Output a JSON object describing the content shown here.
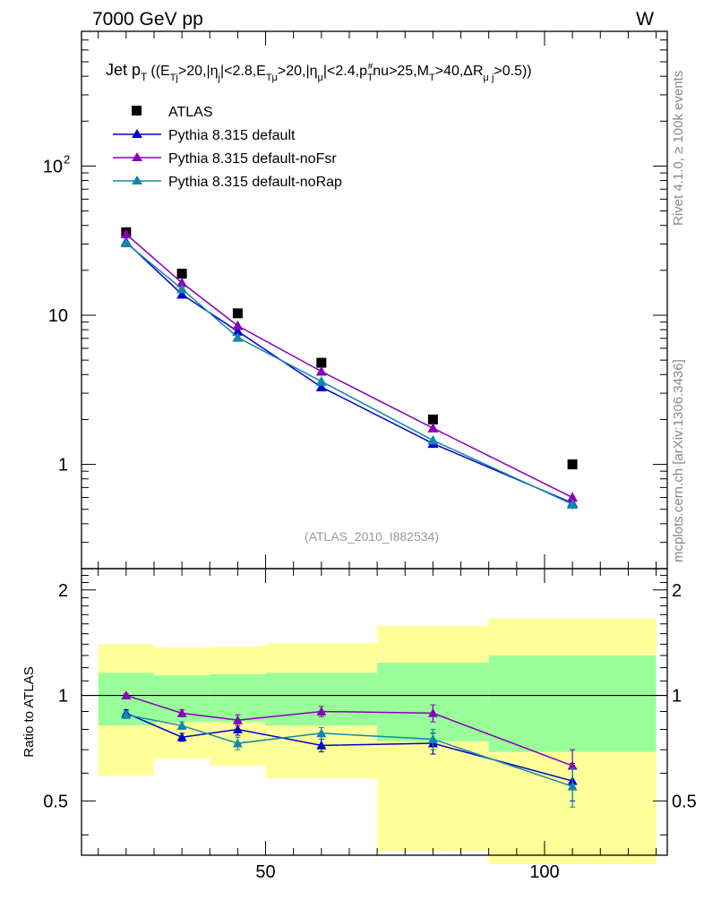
{
  "header": {
    "energy_label": "7000 GeV pp",
    "process_label": "W",
    "side_label_top": "Rivet 4.1.0, ≥ 100k events",
    "side_label_bottom": "mcplots.cern.ch [arXiv:1306.3436]",
    "analysis_label": "(ATLAS_2010_I882534)"
  },
  "chart_data": [
    {
      "type": "scatter",
      "panel": "main",
      "title": "Jet pT ((ETj>20,|ηj|<2.8,ETμ>20,|ημ|<2.4,pT#nu>25,MT>40,ΔRμj>0.5))",
      "title_parts": {
        "main": "Jet p",
        "main_sub": "T",
        "open": "((E",
        "s1": "Tj",
        "t1": ">20,|η",
        "s2": "j",
        "t2": "|<2.8,E",
        "s3": "Tμ",
        "t3": ">20,|η",
        "s4": "μ",
        "t4": "|<2.4,p",
        "s5": "T",
        "sup5": "#",
        "t5": "nu>25,M",
        "s6": "T",
        "t6": ">40,ΔR",
        "s7": "μ j",
        "t7": ">0.5))"
      },
      "xlabel": "",
      "ylabel": "",
      "xlim": [
        17,
        122
      ],
      "ylim": [
        0.2,
        800
      ],
      "yscale": "log",
      "x_ticks": [
        50,
        100
      ],
      "y_ticks": [
        {
          "value": 1,
          "label": "1"
        },
        {
          "value": 10,
          "label": "10"
        },
        {
          "value": 100,
          "label": "10",
          "exp": "2"
        }
      ],
      "legend_position": "top-left",
      "series": [
        {
          "name": "ATLAS",
          "color": "#000000",
          "marker": "square",
          "line": false,
          "x": [
            25,
            35,
            45,
            60,
            80,
            105
          ],
          "y": [
            36,
            19,
            10.3,
            4.8,
            2.0,
            1.0
          ],
          "err": [
            0,
            0,
            0,
            0,
            0,
            0
          ]
        },
        {
          "name": "Pythia 8.315 default",
          "color": "#0000cc",
          "marker": "triangle",
          "line": true,
          "x": [
            25,
            35,
            45,
            60,
            80,
            105
          ],
          "y": [
            31,
            13.8,
            7.8,
            3.3,
            1.38,
            0.55
          ],
          "err": [
            0.5,
            0.3,
            0.2,
            0.1,
            0.06,
            0.04
          ]
        },
        {
          "name": "Pythia 8.315 default-noFsr",
          "color": "#8800bb",
          "marker": "triangle",
          "line": true,
          "x": [
            25,
            35,
            45,
            60,
            80,
            105
          ],
          "y": [
            35,
            16.5,
            8.5,
            4.2,
            1.75,
            0.6
          ],
          "err": [
            0.5,
            0.3,
            0.2,
            0.1,
            0.06,
            0.05
          ]
        },
        {
          "name": "Pythia 8.315 default-noRap",
          "color": "#1188aa",
          "marker": "triangle",
          "line": true,
          "x": [
            25,
            35,
            45,
            60,
            80,
            105
          ],
          "y": [
            30.5,
            15,
            7.1,
            3.6,
            1.45,
            0.54
          ],
          "err": [
            0.5,
            0.3,
            0.2,
            0.1,
            0.06,
            0.04
          ]
        }
      ]
    },
    {
      "type": "line",
      "panel": "ratio",
      "ylabel": "Ratio to ATLAS",
      "xlim": [
        17,
        122
      ],
      "ylim": [
        0.35,
        2.3
      ],
      "yscale": "log",
      "x_ticks": [
        {
          "value": 50,
          "label": "50"
        },
        {
          "value": 100,
          "label": "100"
        }
      ],
      "y_ticks": [
        {
          "value": 0.5,
          "label": "0.5"
        },
        {
          "value": 1,
          "label": "1"
        },
        {
          "value": 2,
          "label": "2"
        }
      ],
      "reference_line": 1,
      "bands": {
        "bins": [
          {
            "lo": 20,
            "hi": 30,
            "inner": [
              0.82,
              1.16
            ],
            "outer": [
              0.59,
              1.4
            ]
          },
          {
            "lo": 30,
            "hi": 40,
            "inner": [
              0.84,
              1.14
            ],
            "outer": [
              0.66,
              1.37
            ]
          },
          {
            "lo": 40,
            "hi": 50,
            "inner": [
              0.84,
              1.15
            ],
            "outer": [
              0.63,
              1.38
            ]
          },
          {
            "lo": 50,
            "hi": 70,
            "inner": [
              0.82,
              1.16
            ],
            "outer": [
              0.58,
              1.41
            ]
          },
          {
            "lo": 70,
            "hi": 90,
            "inner": [
              0.74,
              1.24
            ],
            "outer": [
              0.36,
              1.58
            ]
          },
          {
            "lo": 90,
            "hi": 120,
            "inner": [
              0.69,
              1.3
            ],
            "outer": [
              0.33,
              1.66
            ]
          }
        ],
        "inner_color": "#99ff99",
        "outer_color": "#ffff99"
      },
      "series": [
        {
          "name": "Pythia 8.315 default",
          "color": "#0000cc",
          "x": [
            25,
            35,
            45,
            60,
            80,
            105
          ],
          "y": [
            0.89,
            0.76,
            0.8,
            0.72,
            0.73,
            0.57
          ],
          "err": [
            0.02,
            0.02,
            0.03,
            0.03,
            0.05,
            0.07
          ]
        },
        {
          "name": "Pythia 8.315 default-noFsr",
          "color": "#8800bb",
          "x": [
            25,
            35,
            45,
            60,
            80,
            105
          ],
          "y": [
            1.0,
            0.89,
            0.85,
            0.9,
            0.89,
            0.63
          ],
          "err": [
            0.01,
            0.02,
            0.03,
            0.03,
            0.05,
            0.07
          ]
        },
        {
          "name": "Pythia 8.315 default-noRap",
          "color": "#1188aa",
          "x": [
            25,
            35,
            45,
            60,
            80,
            105
          ],
          "y": [
            0.88,
            0.82,
            0.73,
            0.78,
            0.75,
            0.55
          ],
          "err": [
            0.02,
            0.02,
            0.03,
            0.03,
            0.05,
            0.07
          ]
        }
      ]
    }
  ]
}
